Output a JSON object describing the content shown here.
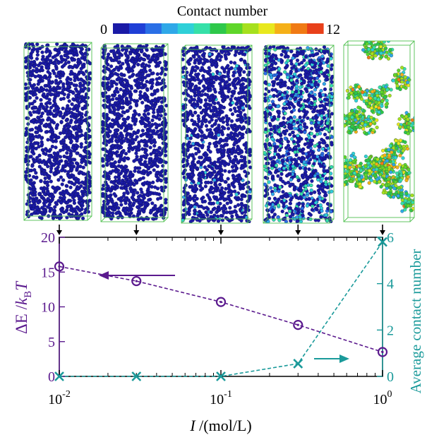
{
  "colorbar": {
    "title": "Contact number",
    "min_label": "0",
    "max_label": "12",
    "min": 0,
    "max": 12,
    "colors": [
      "#1a1aa6",
      "#1f3fd6",
      "#2a6fe6",
      "#2fa8e8",
      "#2fd0d8",
      "#36e0a8",
      "#2ec84a",
      "#5fd62a",
      "#a6e01e",
      "#e8e81e",
      "#f5b018",
      "#f07a14",
      "#e8401a"
    ]
  },
  "snapshots": [
    {
      "label": "I = 0.01 mol/L",
      "mean_contact": 0.0
    },
    {
      "label": "I = 0.03 mol/L",
      "mean_contact": 0.0
    },
    {
      "label": "I = 0.1 mol/L",
      "mean_contact": 0.05
    },
    {
      "label": "I = 0.3 mol/L",
      "mean_contact": 0.6
    },
    {
      "label": "I = 1.0 mol/L",
      "mean_contact": 5.8
    }
  ],
  "chart_data": {
    "type": "line",
    "x": [
      0.01,
      0.03,
      0.1,
      0.3,
      1.0
    ],
    "xscale": "log",
    "xlim": [
      0.01,
      1.0
    ],
    "xticks": [
      {
        "value": 0.01,
        "base": "10",
        "exp": "-2"
      },
      {
        "value": 0.1,
        "base": "10",
        "exp": "-1"
      },
      {
        "value": 1.0,
        "base": "10",
        "exp": "0"
      }
    ],
    "xlabel": {
      "italic": "I",
      "rest": " /(mol/L)"
    },
    "left_axis": {
      "label_parts": {
        "pre": "ΔE /",
        "k": "k",
        "sub": "B",
        "post": "T"
      },
      "ylim": [
        0,
        20
      ],
      "ticks": [
        0,
        5,
        10,
        15,
        20
      ],
      "color": "#5b1a8e"
    },
    "right_axis": {
      "label": "Average contact number",
      "ylim": [
        0,
        6
      ],
      "ticks": [
        0,
        2,
        4,
        6
      ],
      "color": "#1a9a9a"
    },
    "series": [
      {
        "axis": "left",
        "marker": "circle",
        "style": "dashed",
        "color": "#5b1a8e",
        "values": [
          15.8,
          13.7,
          10.7,
          7.4,
          3.5
        ]
      },
      {
        "axis": "right",
        "marker": "x",
        "style": "dashed",
        "color": "#1a9a9a",
        "values": [
          0.0,
          0.0,
          0.0,
          0.55,
          5.8
        ]
      }
    ],
    "grid": false
  }
}
